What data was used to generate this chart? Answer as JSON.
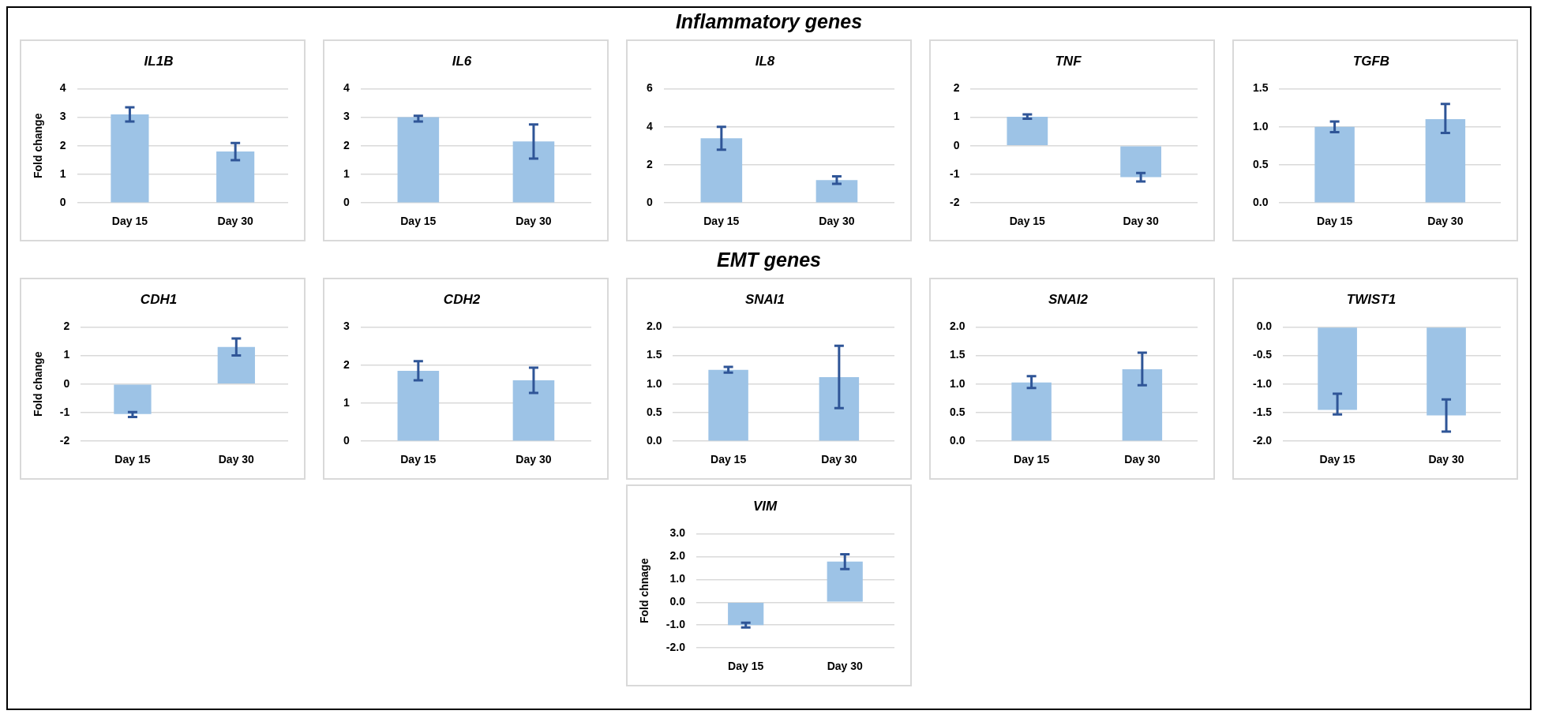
{
  "chart_data": [
    {
      "type": "other",
      "title": "Inflammatory genes"
    },
    {
      "type": "bar",
      "title": "IL1B",
      "ylabel": "Fold change",
      "categories": [
        "Day 15",
        "Day 30"
      ],
      "values": [
        3.1,
        1.8
      ],
      "errors": [
        [
          2.85,
          3.35
        ],
        [
          1.5,
          2.1
        ]
      ],
      "color": "#9dc3e6",
      "ylim": [
        0,
        4
      ],
      "yticks": [
        0,
        1,
        2,
        3,
        4
      ],
      "grid": "y"
    },
    {
      "type": "bar",
      "title": "IL6",
      "categories": [
        "Day 15",
        "Day 30"
      ],
      "values": [
        3.0,
        2.15
      ],
      "errors": [
        [
          2.85,
          3.05
        ],
        [
          1.55,
          2.75
        ]
      ],
      "color": "#9dc3e6",
      "ylim": [
        0,
        4
      ],
      "yticks": [
        0,
        1,
        2,
        3,
        4
      ],
      "grid": "y"
    },
    {
      "type": "bar",
      "title": "IL8",
      "categories": [
        "Day 15",
        "Day 30"
      ],
      "values": [
        3.4,
        1.2
      ],
      "errors": [
        [
          2.8,
          4.0
        ],
        [
          1.0,
          1.4
        ]
      ],
      "color": "#9dc3e6",
      "ylim": [
        0,
        6
      ],
      "yticks": [
        0,
        2,
        4,
        6
      ],
      "grid": "y"
    },
    {
      "type": "bar",
      "title": "TNF",
      "categories": [
        "Day 15",
        "Day 30"
      ],
      "values": [
        1.02,
        -1.1
      ],
      "errors": [
        [
          0.95,
          1.1
        ],
        [
          -1.25,
          -0.95
        ]
      ],
      "color": "#9dc3e6",
      "ylim": [
        -2,
        2
      ],
      "yticks": [
        -2,
        -1,
        0,
        1,
        2
      ],
      "grid": "y"
    },
    {
      "type": "bar",
      "title": "TGFB",
      "categories": [
        "Day 15",
        "Day 30"
      ],
      "values": [
        1.0,
        1.1
      ],
      "errors": [
        [
          0.93,
          1.07
        ],
        [
          0.92,
          1.3
        ]
      ],
      "color": "#9dc3e6",
      "ylim": [
        0,
        1.5
      ],
      "yticks": [
        {
          "value": 0,
          "label": "0.0"
        },
        {
          "value": 0.5,
          "label": "0.5"
        },
        {
          "value": 1,
          "label": "1.0"
        },
        {
          "value": 1.5,
          "label": "1.5"
        }
      ],
      "grid": "y"
    },
    {
      "type": "other",
      "title": "EMT genes"
    },
    {
      "type": "bar",
      "title": "CDH1",
      "ylabel": "Fold change",
      "categories": [
        "Day 15",
        "Day 30"
      ],
      "values": [
        -1.05,
        1.3
      ],
      "errors": [
        [
          -1.15,
          -0.98
        ],
        [
          1.0,
          1.6
        ]
      ],
      "color": "#9dc3e6",
      "ylim": [
        -2,
        2
      ],
      "yticks": [
        -2,
        -1,
        0,
        1,
        2
      ],
      "grid": "y"
    },
    {
      "type": "bar",
      "title": "CDH2",
      "categories": [
        "Day 15",
        "Day 30"
      ],
      "values": [
        1.85,
        1.6
      ],
      "errors": [
        [
          1.6,
          2.1
        ],
        [
          1.27,
          1.93
        ]
      ],
      "color": "#9dc3e6",
      "ylim": [
        0,
        3
      ],
      "yticks": [
        0,
        1,
        2,
        3
      ],
      "grid": "y"
    },
    {
      "type": "bar",
      "title": "SNAI1",
      "categories": [
        "Day 15",
        "Day 30"
      ],
      "values": [
        1.25,
        1.12
      ],
      "errors": [
        [
          1.2,
          1.3
        ],
        [
          0.58,
          1.67
        ]
      ],
      "color": "#9dc3e6",
      "ylim": [
        0,
        2
      ],
      "yticks": [
        {
          "value": 0,
          "label": "0.0"
        },
        {
          "value": 0.5,
          "label": "0.5"
        },
        {
          "value": 1,
          "label": "1.0"
        },
        {
          "value": 1.5,
          "label": "1.5"
        },
        {
          "value": 2,
          "label": "2.0"
        }
      ],
      "grid": "y"
    },
    {
      "type": "bar",
      "title": "SNAI2",
      "categories": [
        "Day 15",
        "Day 30"
      ],
      "values": [
        1.03,
        1.26
      ],
      "errors": [
        [
          0.93,
          1.14
        ],
        [
          0.98,
          1.55
        ]
      ],
      "color": "#9dc3e6",
      "ylim": [
        0,
        2
      ],
      "yticks": [
        {
          "value": 0,
          "label": "0.0"
        },
        {
          "value": 0.5,
          "label": "0.5"
        },
        {
          "value": 1,
          "label": "1.0"
        },
        {
          "value": 1.5,
          "label": "1.5"
        },
        {
          "value": 2,
          "label": "2.0"
        }
      ],
      "grid": "y"
    },
    {
      "type": "bar",
      "title": "TWIST1",
      "categories": [
        "Day 15",
        "Day 30"
      ],
      "values": [
        -1.45,
        -1.55
      ],
      "errors": [
        [
          -1.53,
          -1.17
        ],
        [
          -1.83,
          -1.27
        ]
      ],
      "color": "#9dc3e6",
      "ylim": [
        -2,
        0
      ],
      "yticks": [
        {
          "value": -2,
          "label": "-2.0"
        },
        {
          "value": -1.5,
          "label": "-1.5"
        },
        {
          "value": -1,
          "label": "-1.0"
        },
        {
          "value": -0.5,
          "label": "-0.5"
        },
        {
          "value": 0,
          "label": "0.0"
        }
      ],
      "grid": "y"
    },
    {
      "type": "bar",
      "title": "VIM",
      "ylabel": "Fold chnage",
      "categories": [
        "Day 15",
        "Day 30"
      ],
      "values": [
        -1.0,
        1.78
      ],
      "errors": [
        [
          -1.1,
          -0.9
        ],
        [
          1.45,
          2.1
        ]
      ],
      "color": "#9dc3e6",
      "ylim": [
        -2,
        3
      ],
      "yticks": [
        {
          "value": -2,
          "label": "-2.0"
        },
        {
          "value": -1,
          "label": "-1.0"
        },
        {
          "value": 0,
          "label": "0.0"
        },
        {
          "value": 1,
          "label": "1.0"
        },
        {
          "value": 2,
          "label": "2.0"
        },
        {
          "value": 3,
          "label": "3.0"
        }
      ],
      "grid": "y"
    }
  ]
}
